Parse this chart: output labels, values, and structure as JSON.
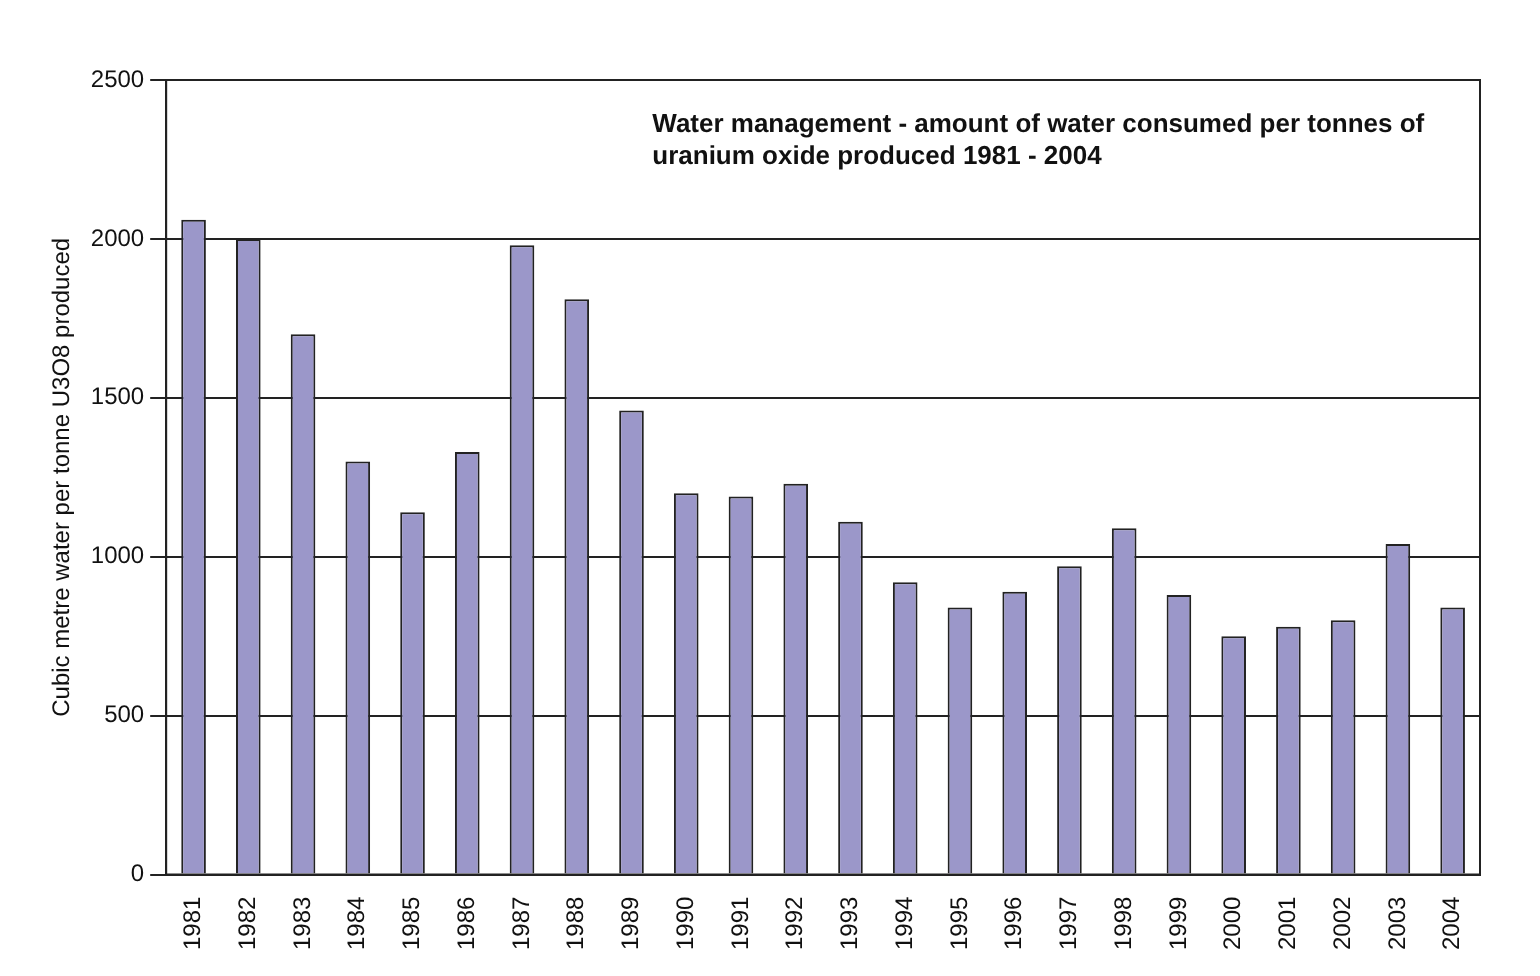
{
  "chart_data": {
    "type": "bar",
    "title": "Water management - amount of water consumed per tonnes of uranium oxide produced 1981 - 2004",
    "ylabel": "Cubic metre water per tonne U3O8 produced",
    "categories": [
      "1981",
      "1982",
      "1983",
      "1984",
      "1985",
      "1986",
      "1987",
      "1988",
      "1989",
      "1990",
      "1991",
      "1992",
      "1993",
      "1994",
      "1995",
      "1996",
      "1997",
      "1998",
      "1999",
      "2000",
      "2001",
      "2002",
      "2003",
      "2004"
    ],
    "values": [
      2060,
      2000,
      1700,
      1300,
      1140,
      1330,
      1980,
      1810,
      1460,
      1200,
      1190,
      1230,
      1110,
      920,
      840,
      890,
      970,
      1090,
      880,
      750,
      780,
      800,
      1040,
      840
    ],
    "color": "#9b97c9",
    "ylim": [
      0,
      2500
    ],
    "yticks": [
      0,
      500,
      1000,
      1500,
      2000,
      2500
    ],
    "grid": "y",
    "legend": false
  }
}
